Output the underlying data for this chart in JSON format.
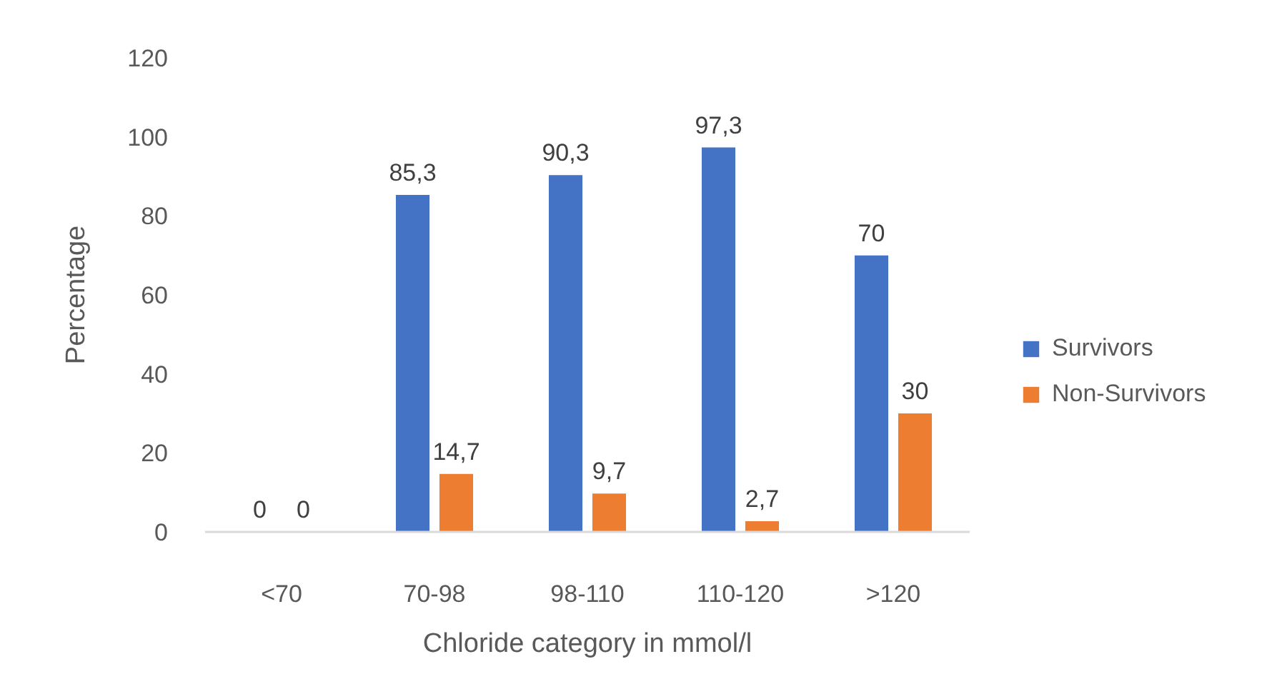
{
  "chart_data": {
    "type": "bar",
    "xlabel": "Chloride category in mmol/l",
    "ylabel": "Percentage",
    "categories": [
      "<70",
      "70-98",
      "98-110",
      "110-120",
      ">120"
    ],
    "series": [
      {
        "name": "Survivors",
        "color": "#4472c4",
        "values": [
          0,
          85.3,
          90.3,
          97.3,
          70
        ],
        "value_labels": [
          "0",
          "85,3",
          "90,3",
          "97,3",
          "70"
        ]
      },
      {
        "name": "Non-Survivors",
        "color": "#ed7d31",
        "values": [
          0,
          14.7,
          9.7,
          2.7,
          30
        ],
        "value_labels": [
          "0",
          "14,7",
          "9,7",
          "2,7",
          "30"
        ]
      }
    ],
    "ylim": [
      0,
      120
    ],
    "yticks": [
      0,
      20,
      40,
      60,
      80,
      100,
      120
    ],
    "legend": "right"
  }
}
